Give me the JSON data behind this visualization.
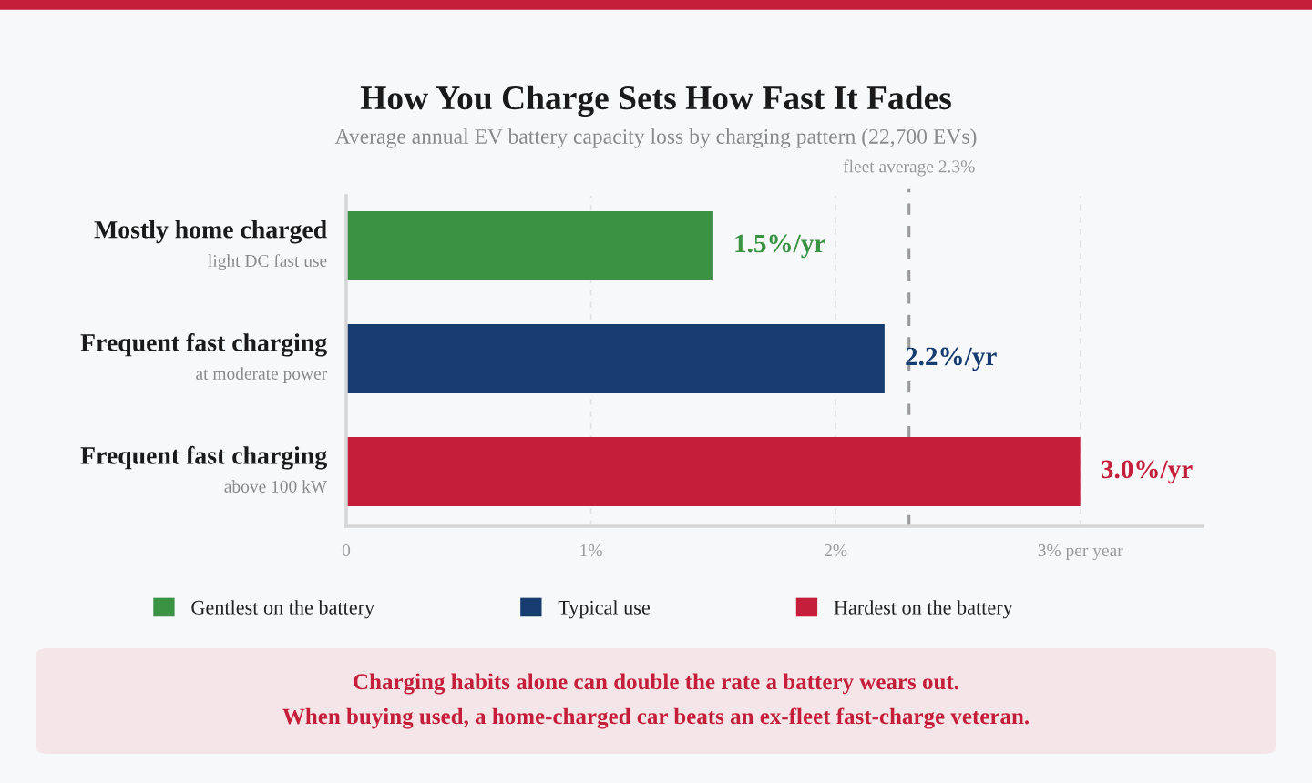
{
  "chart_data": {
    "type": "bar",
    "orientation": "horizontal",
    "stacked": true,
    "title": "How You Charge Sets How Fast It Fades",
    "subtitle": "Average annual EV battery capacity loss by charging pattern (22,700 EVs)",
    "categories": [
      "Mostly home charged\nlight DC fast use",
      "Frequent fast charging\nat moderate power",
      "Frequent fast charging\nabove 100 kW"
    ],
    "series": [
      {
        "name": "Gentlest on the battery",
        "color": "#3a9342",
        "values": [
          1.5,
          null,
          null
        ],
        "value_labels": [
          "1.5%/yr",
          null,
          null
        ]
      },
      {
        "name": "Typical use",
        "color": "#173c70",
        "values": [
          null,
          2.2,
          null
        ],
        "value_labels": [
          null,
          "2.2%/yr",
          null
        ]
      },
      {
        "name": "Hardest on the battery",
        "color": "#c41e3a",
        "values": [
          null,
          null,
          3.0
        ],
        "value_labels": [
          null,
          null,
          "3.0%/yr"
        ]
      }
    ],
    "xlim": [
      0,
      3.5
    ],
    "xticks": [
      0,
      {
        "value": 1,
        "label": "1%"
      },
      {
        "value": 2,
        "label": "2%"
      },
      {
        "value": 3,
        "label": "3% per year"
      }
    ],
    "grid": "x",
    "legend": "bottom",
    "ref_lines": [
      {
        "axis": "x",
        "value": 2.3,
        "label": "fleet average 2.3%",
        "color": "#999999",
        "line_style": "dashed"
      }
    ],
    "annotations": [
      "Charging habits alone can double the rate a battery wears out.",
      "When buying used, a home-charged car beats an ex-fleet fast-charge veteran."
    ]
  }
}
